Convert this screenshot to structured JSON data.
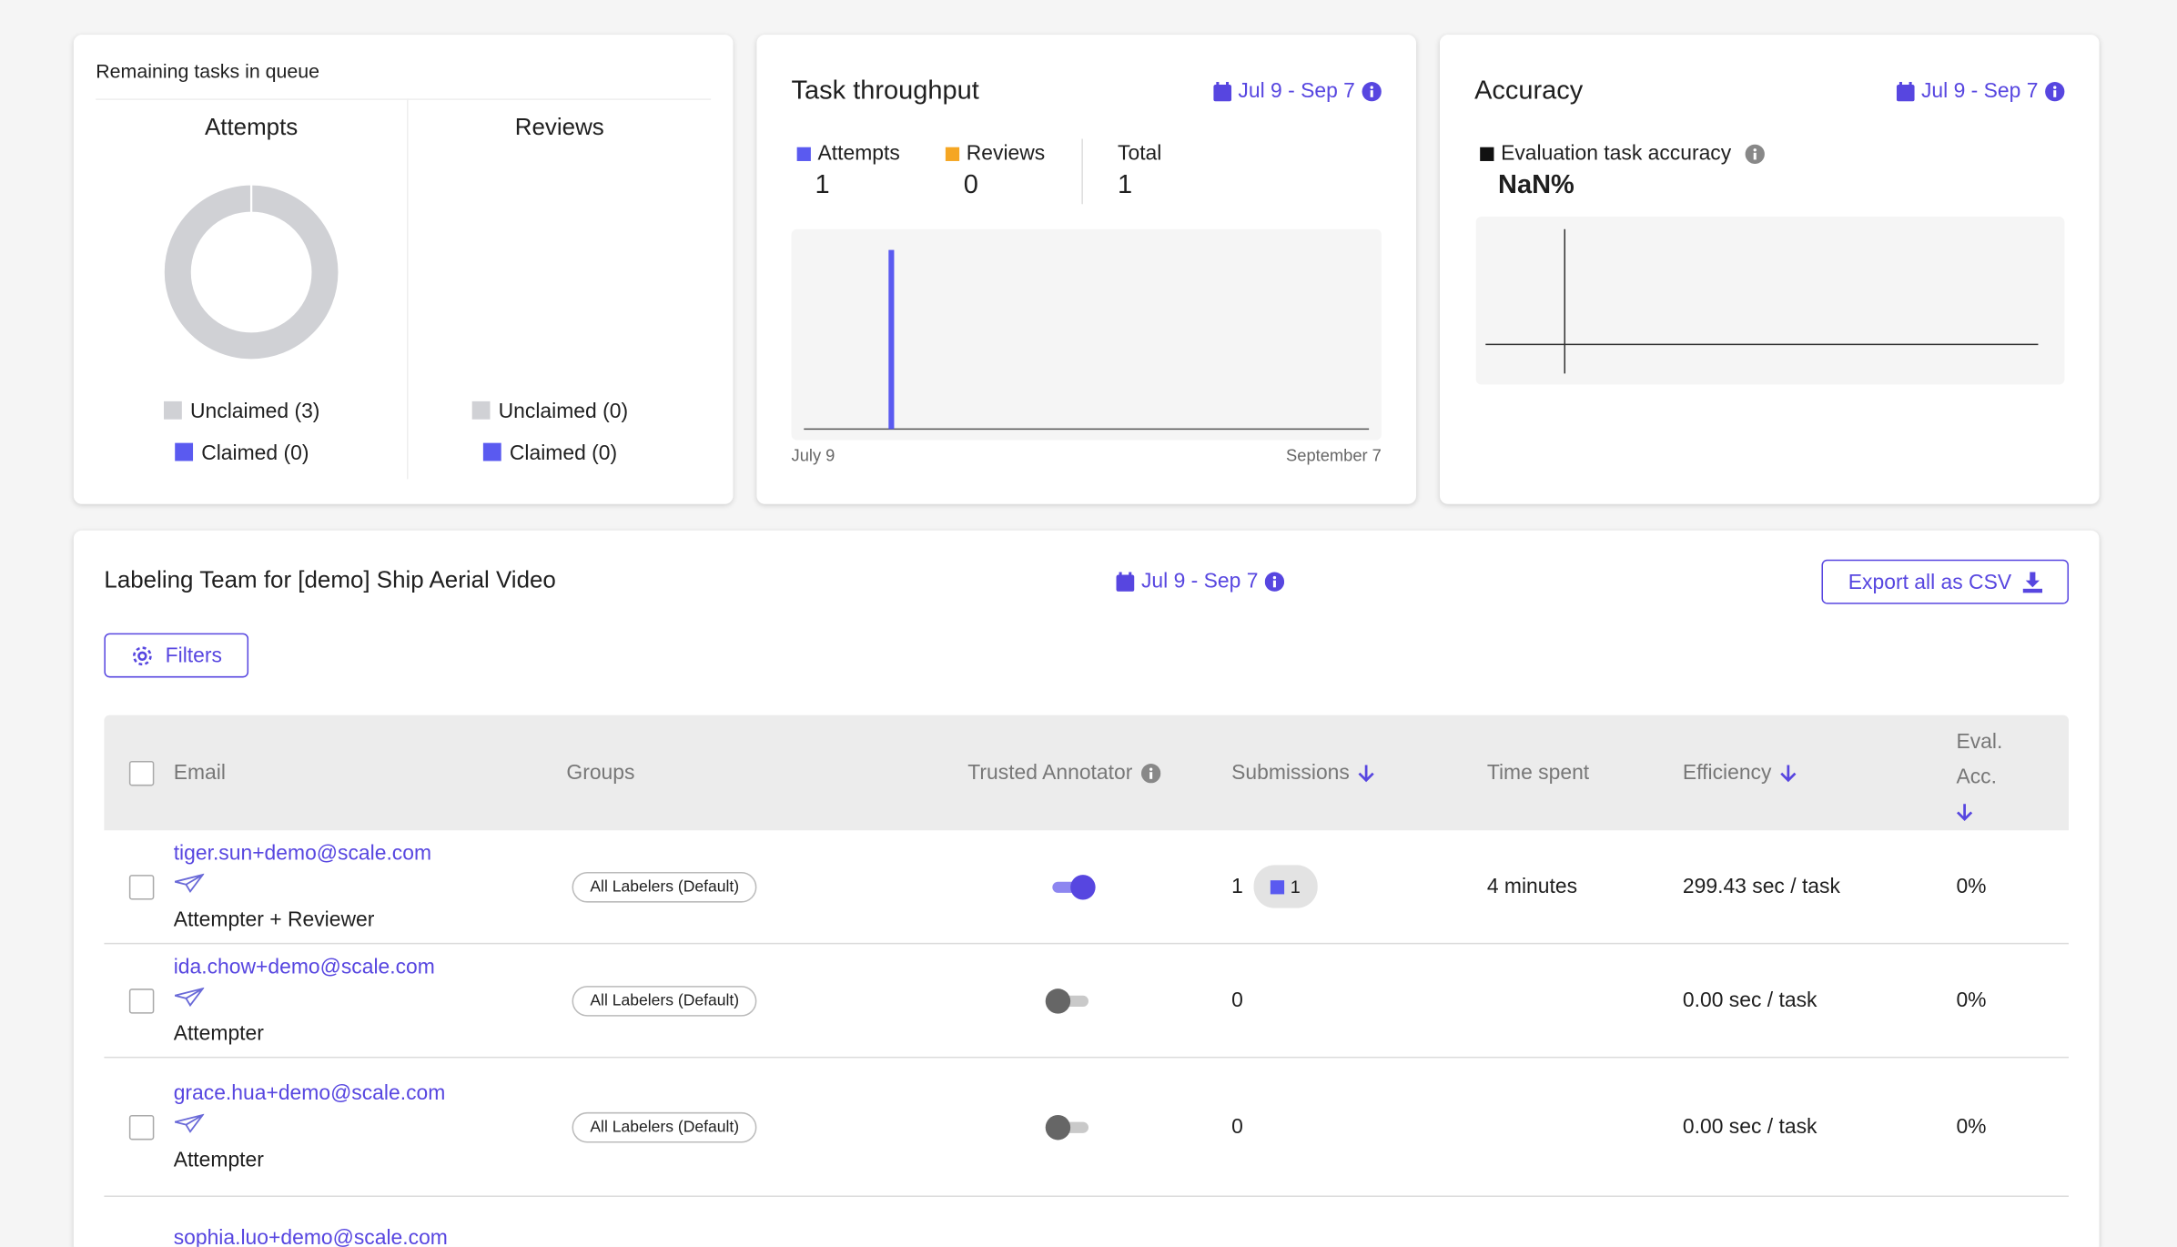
{
  "queue": {
    "title": "Remaining tasks in queue",
    "columns": [
      {
        "title": "Attempts",
        "legend": [
          "Unclaimed (3)",
          "Claimed (0)"
        ]
      },
      {
        "title": "Reviews",
        "legend": [
          "Unclaimed (0)",
          "Claimed (0)"
        ]
      }
    ]
  },
  "throughput": {
    "title": "Task throughput",
    "date_range": "Jul 9 - Sep 7",
    "stats": [
      {
        "label": "Attempts",
        "value": "1"
      },
      {
        "label": "Reviews",
        "value": "0"
      },
      {
        "label": "Total",
        "value": "1"
      }
    ],
    "x_start": "July 9",
    "x_end": "September 7"
  },
  "accuracy": {
    "title": "Accuracy",
    "date_range": "Jul 9 - Sep 7",
    "metric_label": "Evaluation task accuracy",
    "metric_value": "NaN%"
  },
  "team": {
    "title": "Labeling Team for [demo] Ship Aerial Video",
    "date_range": "Jul 9 - Sep 7",
    "export": "Export all as CSV",
    "filters": "Filters",
    "table": {
      "headers": [
        "Email",
        "Groups",
        "Trusted Annotator",
        "Submissions",
        "Time spent",
        "Efficiency",
        "Eval. Acc."
      ],
      "rows": [
        {
          "email": "tiger.sun+demo@scale.com",
          "role": "Attempter + Reviewer",
          "group": "All Labelers (Default)",
          "trusted": true,
          "submissions": "1",
          "badge": "1",
          "time": "4 minutes",
          "efficiency": "299.43 sec / task",
          "eval_acc": "0%"
        },
        {
          "email": "ida.chow+demo@scale.com",
          "role": "Attempter",
          "group": "All Labelers (Default)",
          "trusted": false,
          "submissions": "0",
          "efficiency": "0.00 sec / task",
          "eval_acc": "0%"
        },
        {
          "email": "grace.hua+demo@scale.com",
          "role": "Attempter",
          "group": "All Labelers (Default)",
          "trusted": false,
          "submissions": "0",
          "efficiency": "0.00 sec / task",
          "eval_acc": "0%"
        },
        {
          "email": "sophia.luo+demo@scale.com"
        }
      ]
    }
  }
}
